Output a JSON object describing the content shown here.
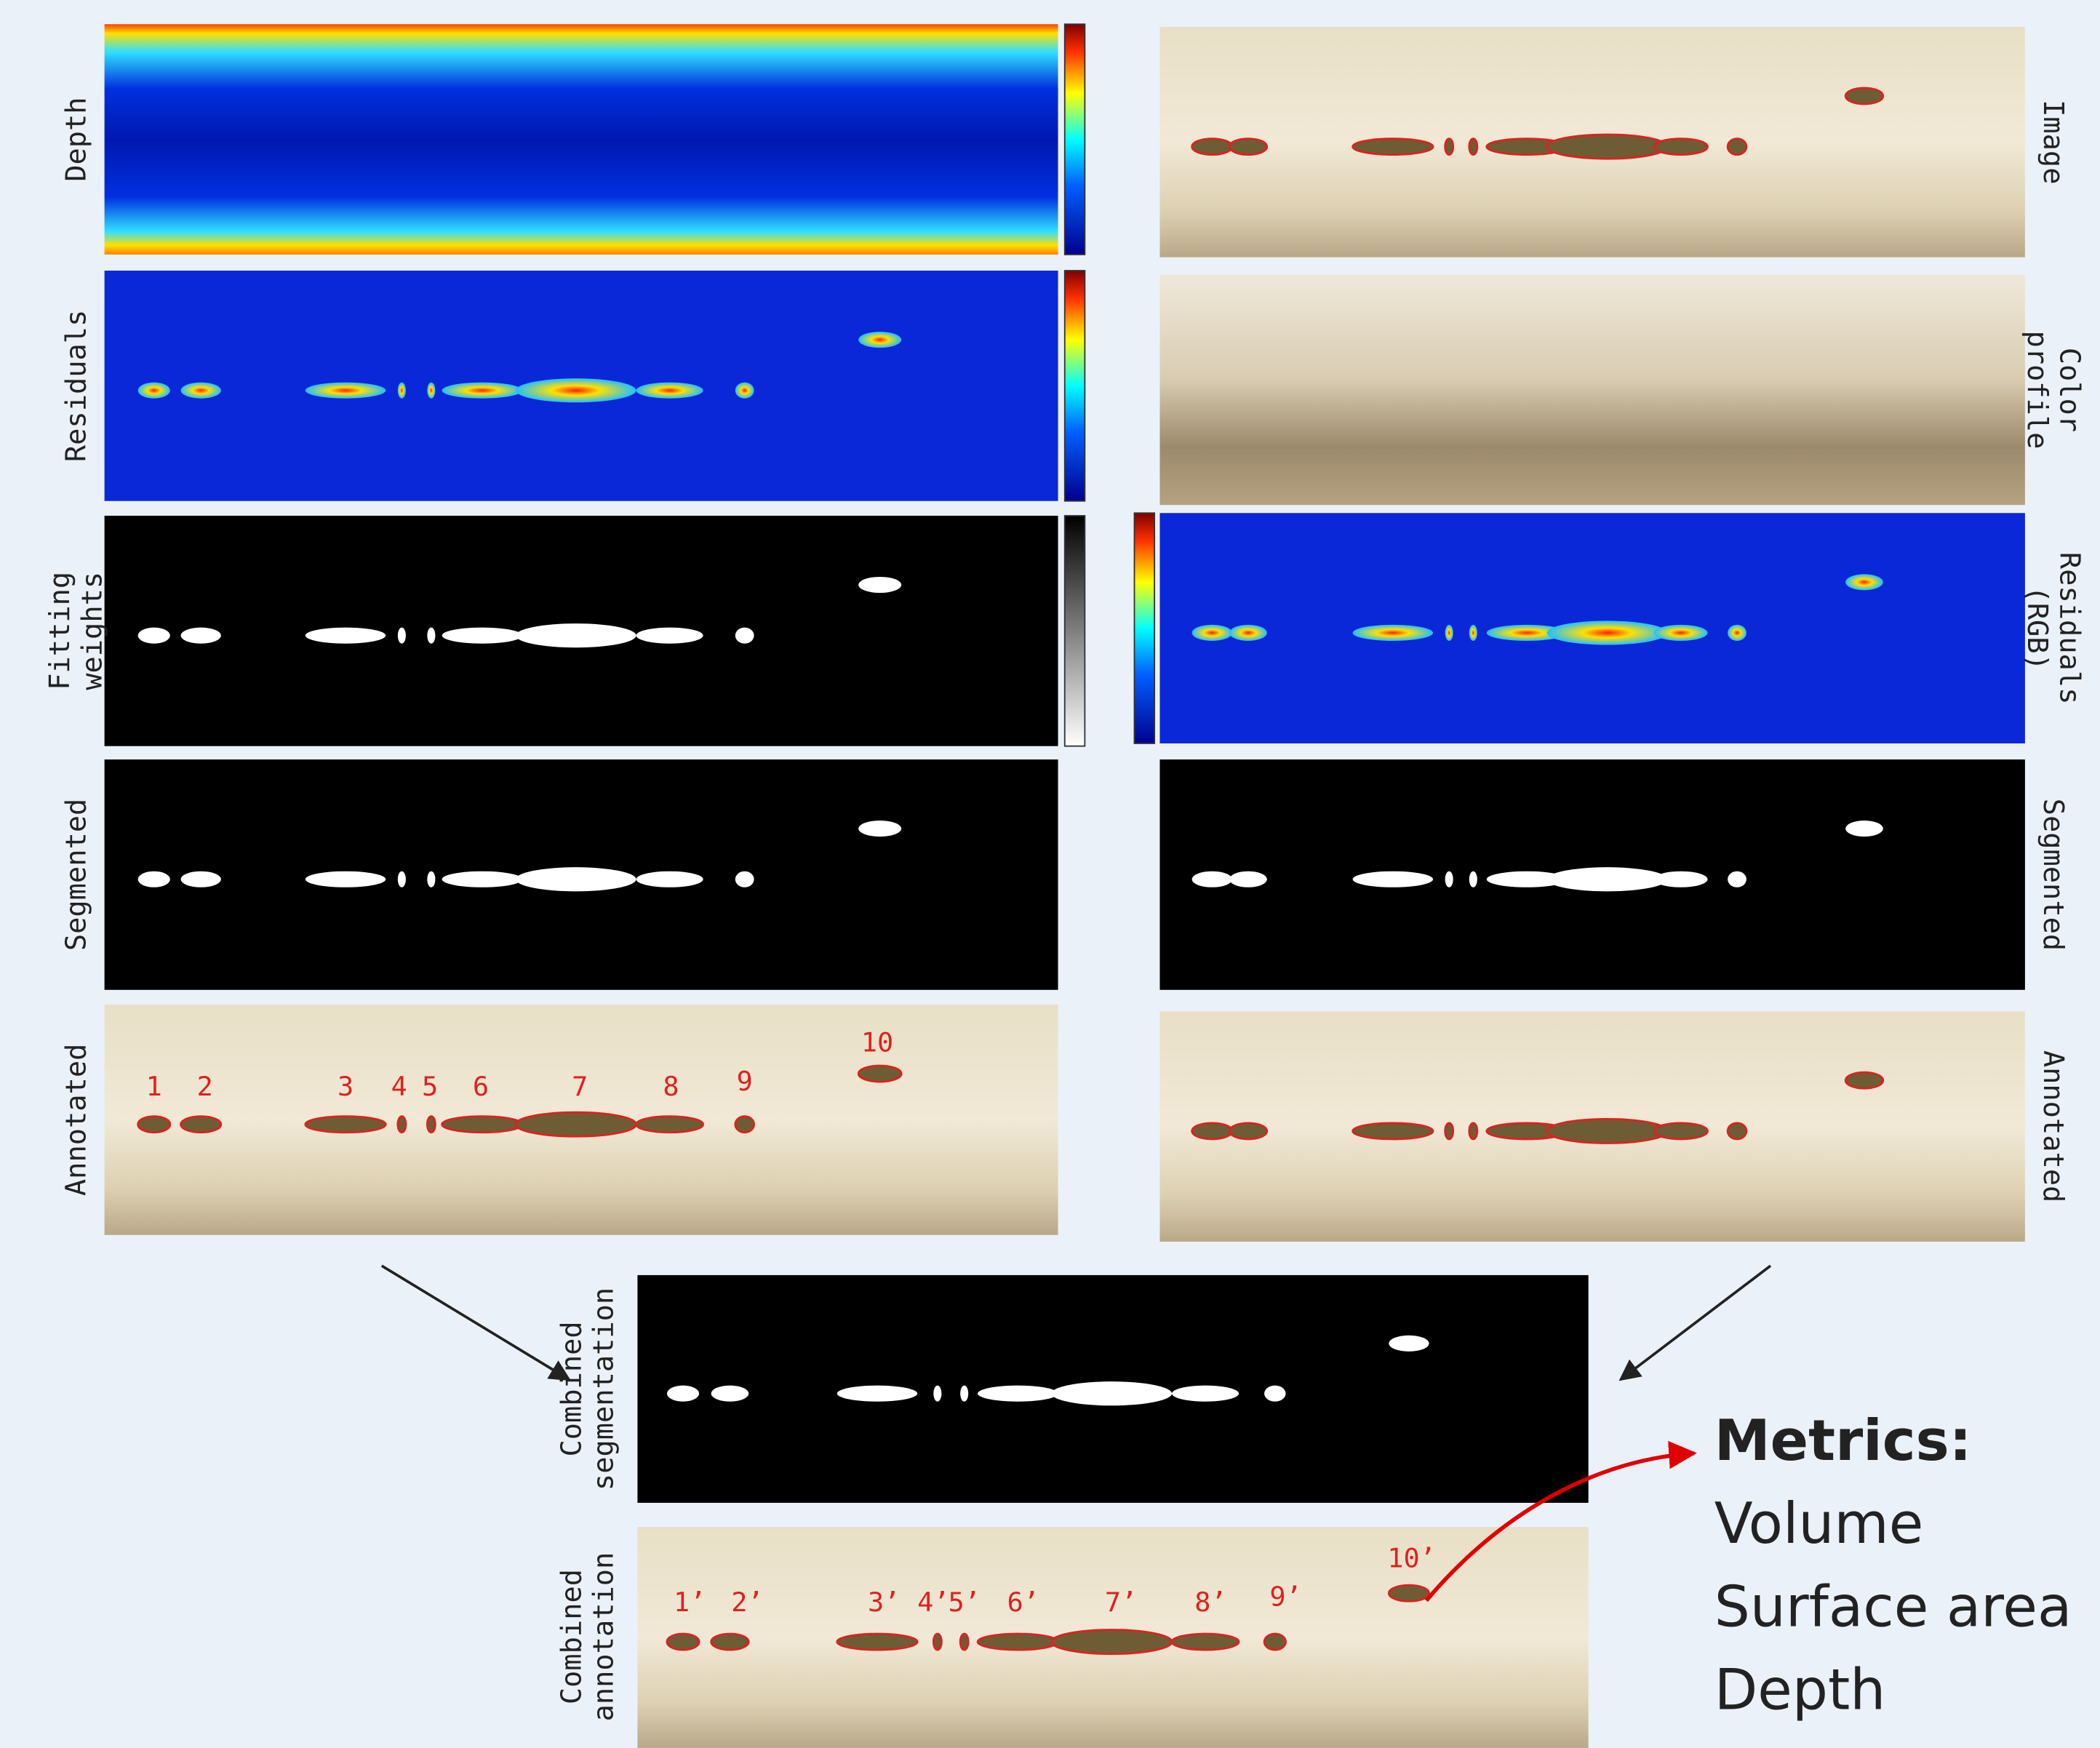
{
  "left_panels": [
    {
      "label": [
        "Depth"
      ]
    },
    {
      "label": [
        "Residuals"
      ]
    },
    {
      "label": [
        "Fitting",
        "weights"
      ]
    },
    {
      "label": [
        "Segmented"
      ]
    },
    {
      "label": [
        "Annotated"
      ]
    }
  ],
  "right_panels": [
    {
      "label": [
        "Image"
      ]
    },
    {
      "label": [
        "Color",
        "profile"
      ]
    },
    {
      "label": [
        "Residuals",
        "(RGB)"
      ]
    },
    {
      "label": [
        "Segmented"
      ]
    },
    {
      "label": [
        "Annotated"
      ]
    }
  ],
  "combined_panels": [
    {
      "label": [
        "Combined",
        "segmentation"
      ]
    },
    {
      "label": [
        "Combined",
        "annotation"
      ]
    }
  ],
  "annotations": [
    "1",
    "2",
    "3",
    "4",
    "5",
    "6",
    "7",
    "8",
    "9",
    "10"
  ],
  "combined_annotations": [
    "1’",
    "2’",
    "3’",
    "4’",
    "5’",
    "6’",
    "7’",
    "8’",
    "9’",
    "10’"
  ],
  "metrics": {
    "title": "Metrics:",
    "items": [
      "Volume",
      "Surface area",
      "Depth"
    ]
  }
}
